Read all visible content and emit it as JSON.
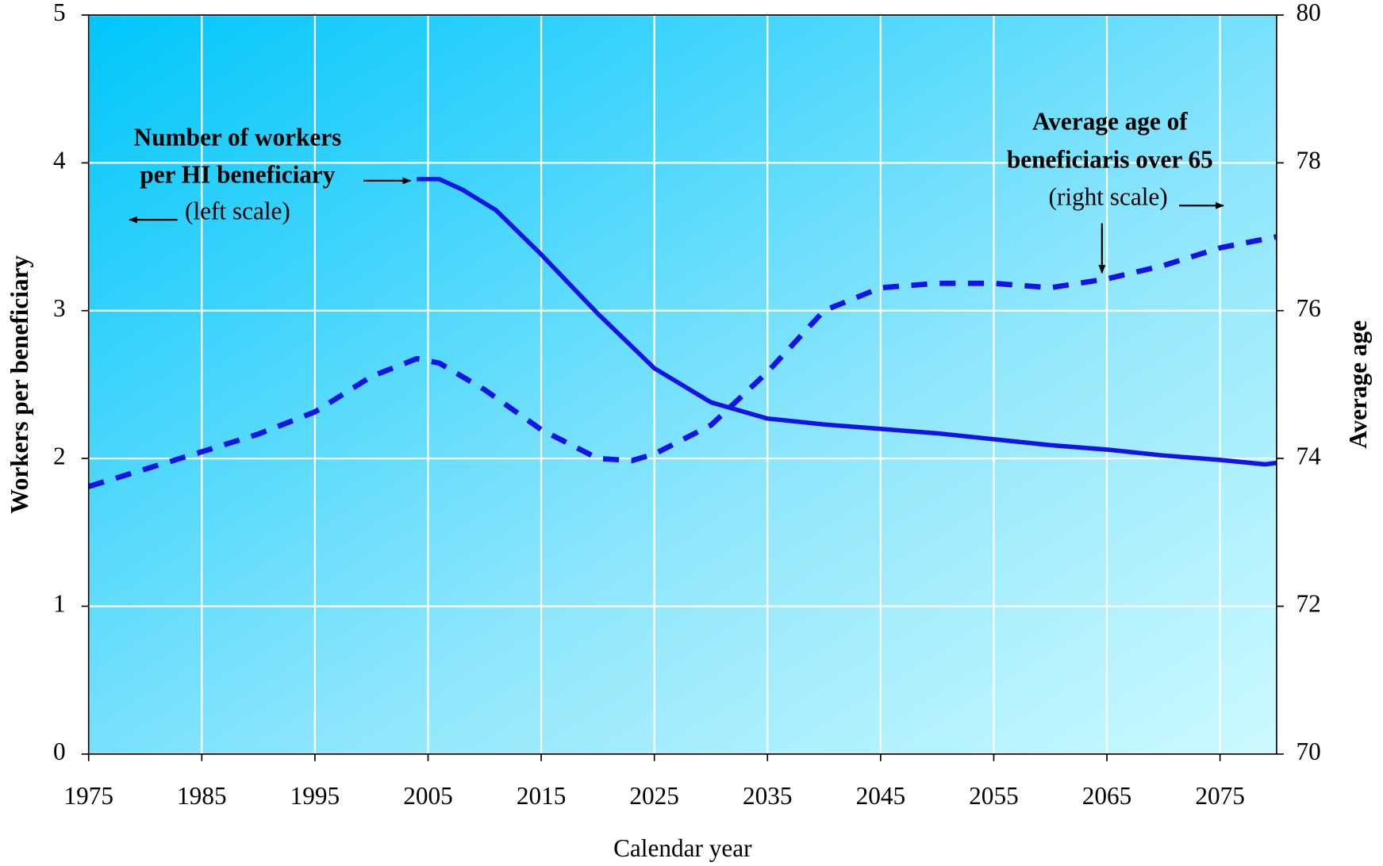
{
  "chart_data": {
    "type": "line",
    "x_label": "Calendar year",
    "y_label": "Workers per beneficiary",
    "y2_label": "Average age",
    "xlim": [
      1975,
      2080
    ],
    "xticks": [
      1975,
      1985,
      1995,
      2005,
      2015,
      2025,
      2035,
      2045,
      2055,
      2065,
      2075
    ],
    "ylim": [
      0,
      5
    ],
    "yticks": [
      0,
      1,
      2,
      3,
      4,
      5
    ],
    "y2lim": [
      70,
      80
    ],
    "y2ticks": [
      70,
      72,
      74,
      76,
      78,
      80
    ],
    "grid": true,
    "series": [
      {
        "name": "Number of workers per HI beneficiary",
        "color": "#1414e6",
        "style": "solid",
        "x": [
          2004,
          2006,
          2008,
          2011,
          2015,
          2020,
          2025,
          2030,
          2035,
          2040,
          2045,
          2050,
          2055,
          2060,
          2065,
          2070,
          2075,
          2079,
          2080
        ],
        "values": [
          3.89,
          3.89,
          3.82,
          3.68,
          3.38,
          2.98,
          2.61,
          2.38,
          2.27,
          2.23,
          2.2,
          2.17,
          2.13,
          2.09,
          2.06,
          2.02,
          1.99,
          1.96,
          1.97
        ]
      },
      {
        "name": "Average age of beneficiaris over 65",
        "color": "#1414e6",
        "style": "dashed",
        "axis": "y2",
        "x": [
          1975,
          1985,
          1990,
          1995,
          2000,
          2004,
          2006,
          2010,
          2015,
          2020,
          2023,
          2025,
          2030,
          2035,
          2040,
          2045,
          2050,
          2055,
          2060,
          2065,
          2070,
          2075,
          2080
        ],
        "values": [
          73.62,
          74.09,
          74.33,
          74.63,
          75.11,
          75.35,
          75.29,
          74.93,
          74.39,
          74.0,
          73.97,
          74.06,
          74.45,
          75.17,
          76.0,
          76.31,
          76.37,
          76.37,
          76.31,
          76.43,
          76.61,
          76.85,
          77.0
        ]
      }
    ],
    "annotations": [
      [
        "Number of workers",
        "per HI beneficiary",
        "(left scale)"
      ],
      [
        "Average age of",
        "beneficiaris over 65",
        "(right scale)"
      ]
    ]
  }
}
